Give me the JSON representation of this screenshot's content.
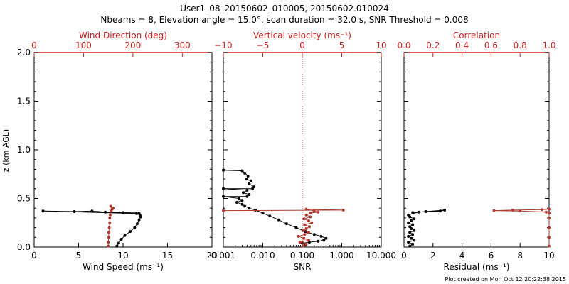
{
  "header": {
    "title_line1": "User1_08_20150602_010005, 20150602.010024",
    "title_line2": "Nbeams = 8, Elevation angle = 15.0°, scan duration = 32.0 s, SNR Threshold = 0.008"
  },
  "footer": {
    "credit": "Plot created on Mon Oct 12 20:22:38 2015"
  },
  "colors": {
    "axis": "#000000",
    "red_axis": "#cc1f1f",
    "red_series": "#b03a2e",
    "black_series": "#000000"
  },
  "chart_data": [
    {
      "type": "line",
      "panel": "left",
      "ylabel": "z (km AGL)",
      "ylim": [
        0,
        2.0
      ],
      "yticks": [
        "0.0",
        "0.5",
        "1.0",
        "1.5",
        "2.0"
      ],
      "yvals": [
        0,
        0.5,
        1.0,
        1.5,
        2.0
      ],
      "bottom_axis": {
        "label": "Wind Speed (ms⁻¹)",
        "lim": [
          0,
          20
        ],
        "ticks": [
          "0",
          "5",
          "10",
          "15",
          "20"
        ],
        "vals": [
          0,
          5,
          10,
          15,
          20
        ]
      },
      "top_axis": {
        "label": "Wind Direction (deg)",
        "lim": [
          0,
          360
        ],
        "ticks": [
          "0",
          "100",
          "200",
          "300"
        ],
        "vals": [
          0,
          100,
          200,
          300
        ]
      },
      "series": [
        {
          "name": "Wind Speed",
          "axis": "bottom",
          "color": "black",
          "points": [
            [
              9.3,
              0.01
            ],
            [
              9.5,
              0.04
            ],
            [
              9.8,
              0.08
            ],
            [
              10.2,
              0.12
            ],
            [
              10.8,
              0.16
            ],
            [
              11.3,
              0.2
            ],
            [
              11.6,
              0.24
            ],
            [
              11.8,
              0.28
            ],
            [
              12.0,
              0.31
            ],
            [
              11.9,
              0.33
            ],
            [
              11.5,
              0.345
            ],
            [
              1.0,
              0.37
            ],
            [
              4.5,
              0.365
            ],
            [
              6.5,
              0.37
            ],
            [
              8.0,
              0.36
            ],
            [
              10.0,
              0.355
            ],
            [
              11.8,
              0.35
            ]
          ]
        },
        {
          "name": "Wind Direction",
          "axis": "top",
          "color": "red",
          "points": [
            [
              150,
              0.01
            ],
            [
              150,
              0.05
            ],
            [
              151,
              0.1
            ],
            [
              151,
              0.15
            ],
            [
              152,
              0.2
            ],
            [
              153,
              0.25
            ],
            [
              153,
              0.3
            ],
            [
              154,
              0.33
            ],
            [
              156,
              0.37
            ],
            [
              160,
              0.4
            ],
            [
              155,
              0.42
            ],
            [
              158,
              0.39
            ]
          ]
        }
      ]
    },
    {
      "type": "line",
      "panel": "middle",
      "ylim": [
        0,
        2.0
      ],
      "bottom_axis": {
        "label": "SNR",
        "scale": "log",
        "lim": [
          0.001,
          10.0
        ],
        "ticks": [
          "0.001",
          "0.010",
          "0.100",
          "1.000",
          "10.000"
        ],
        "vals": [
          0.001,
          0.01,
          0.1,
          1.0,
          10.0
        ]
      },
      "top_axis": {
        "label": "Vertical velocity (ms⁻¹)",
        "lim": [
          -10,
          10
        ],
        "ticks": [
          "−10",
          "−5",
          "0",
          "5",
          "10"
        ],
        "vals": [
          -10,
          -5,
          0,
          5,
          10
        ]
      },
      "zero_line": {
        "axis": "top",
        "value": 0
      },
      "series": [
        {
          "name": "SNR",
          "axis": "bottom",
          "color": "black",
          "points": [
            [
              0.001,
              0.79
            ],
            [
              0.003,
              0.785
            ],
            [
              0.0035,
              0.76
            ],
            [
              0.0042,
              0.73
            ],
            [
              0.0038,
              0.7
            ],
            [
              0.005,
              0.68
            ],
            [
              0.0045,
              0.65
            ],
            [
              0.006,
              0.62
            ],
            [
              0.0055,
              0.6
            ],
            [
              0.001,
              0.6
            ],
            [
              0.004,
              0.585
            ],
            [
              0.0032,
              0.56
            ],
            [
              0.0045,
              0.54
            ],
            [
              0.004,
              0.52
            ],
            [
              0.001,
              0.52
            ],
            [
              0.0025,
              0.5
            ],
            [
              0.003,
              0.48
            ],
            [
              0.0022,
              0.46
            ],
            [
              0.003,
              0.44
            ],
            [
              0.0035,
              0.42
            ],
            [
              0.0045,
              0.4
            ],
            [
              0.0065,
              0.38
            ],
            [
              0.01,
              0.35
            ],
            [
              0.015,
              0.32
            ],
            [
              0.025,
              0.28
            ],
            [
              0.04,
              0.24
            ],
            [
              0.07,
              0.2
            ],
            [
              0.12,
              0.16
            ],
            [
              0.2,
              0.13
            ],
            [
              0.3,
              0.11
            ],
            [
              0.4,
              0.09
            ],
            [
              0.35,
              0.07
            ],
            [
              0.25,
              0.06
            ],
            [
              0.15,
              0.05
            ],
            [
              0.1,
              0.04
            ],
            [
              0.12,
              0.02
            ]
          ]
        },
        {
          "name": "Vertical velocity",
          "axis": "top",
          "color": "red",
          "points": [
            [
              -10,
              0.375
            ],
            [
              5.2,
              0.38
            ],
            [
              0.5,
              0.39
            ],
            [
              1.5,
              0.37
            ],
            [
              2.0,
              0.36
            ],
            [
              1.0,
              0.35
            ],
            [
              0.5,
              0.33
            ],
            [
              1.0,
              0.31
            ],
            [
              0.2,
              0.29
            ],
            [
              0.8,
              0.27
            ],
            [
              1.2,
              0.25
            ],
            [
              0.3,
              0.23
            ],
            [
              0.9,
              0.21
            ],
            [
              0.5,
              0.19
            ],
            [
              0.1,
              0.17
            ],
            [
              0.8,
              0.15
            ],
            [
              0.3,
              0.13
            ],
            [
              -0.5,
              0.11
            ],
            [
              0.2,
              0.09
            ],
            [
              0.8,
              0.07
            ],
            [
              -0.3,
              0.05
            ],
            [
              0.5,
              0.03
            ],
            [
              0.1,
              0.01
            ]
          ]
        }
      ]
    },
    {
      "type": "line",
      "panel": "right",
      "ylim": [
        0,
        2.0
      ],
      "bottom_axis": {
        "label": "Residual (ms⁻¹)",
        "lim": [
          0,
          10
        ],
        "ticks": [
          "0",
          "2",
          "4",
          "6",
          "8",
          "10"
        ],
        "vals": [
          0,
          2,
          4,
          6,
          8,
          10
        ]
      },
      "top_axis": {
        "label": "Correlation",
        "lim": [
          0,
          1.0
        ],
        "ticks": [
          "0.0",
          "0.2",
          "0.4",
          "0.6",
          "0.8",
          "1.0"
        ],
        "vals": [
          0,
          0.2,
          0.4,
          0.6,
          0.8,
          1.0
        ]
      },
      "series": [
        {
          "name": "Residual",
          "axis": "bottom",
          "color": "black",
          "points": [
            [
              0.4,
              0.01
            ],
            [
              0.6,
              0.03
            ],
            [
              0.3,
              0.05
            ],
            [
              0.7,
              0.07
            ],
            [
              0.5,
              0.09
            ],
            [
              0.3,
              0.11
            ],
            [
              0.6,
              0.13
            ],
            [
              0.4,
              0.15
            ],
            [
              0.7,
              0.17
            ],
            [
              0.5,
              0.19
            ],
            [
              0.4,
              0.21
            ],
            [
              0.6,
              0.23
            ],
            [
              0.3,
              0.25
            ],
            [
              0.5,
              0.27
            ],
            [
              0.7,
              0.29
            ],
            [
              0.4,
              0.31
            ],
            [
              0.3,
              0.33
            ],
            [
              1.0,
              0.36
            ],
            [
              2.5,
              0.37
            ],
            [
              2.8,
              0.38
            ],
            [
              1.5,
              0.365
            ],
            [
              0.6,
              0.355
            ]
          ]
        },
        {
          "name": "Correlation",
          "axis": "top",
          "color": "red",
          "points": [
            [
              1.0,
              0.01
            ],
            [
              1.0,
              0.1
            ],
            [
              1.0,
              0.2
            ],
            [
              1.0,
              0.3
            ],
            [
              1.0,
              0.35
            ],
            [
              0.98,
              0.36
            ],
            [
              0.8,
              0.37
            ],
            [
              0.62,
              0.375
            ],
            [
              0.75,
              0.38
            ],
            [
              0.95,
              0.385
            ],
            [
              1.0,
              0.39
            ]
          ]
        }
      ]
    }
  ]
}
